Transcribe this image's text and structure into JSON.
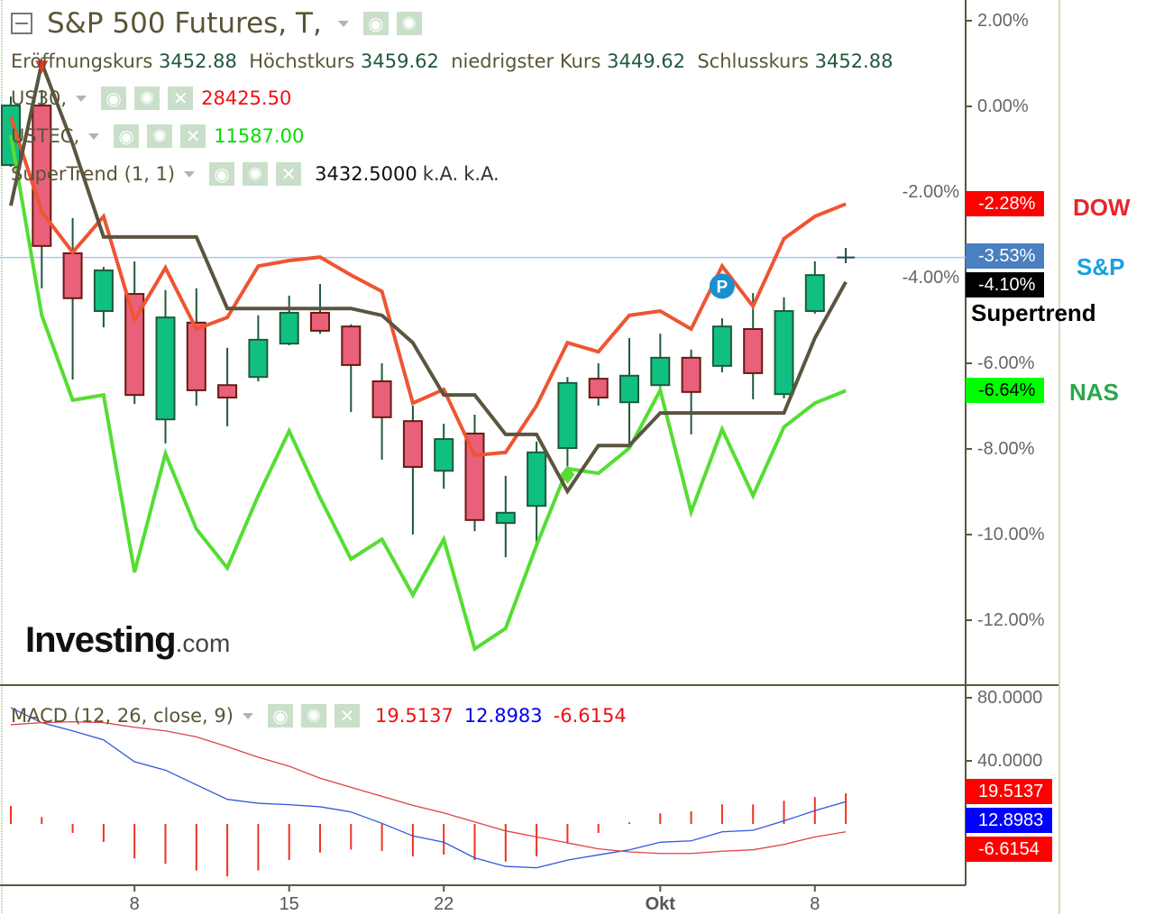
{
  "header": {
    "title": "S&P 500 Futures, T,",
    "ohlc": [
      {
        "label": "Eröffnungskurs",
        "value": "3452.88"
      },
      {
        "label": "Höchstkurs",
        "value": "3459.62"
      },
      {
        "label": "niedrigster Kurs",
        "value": "3449.62"
      },
      {
        "label": "Schlusskurs",
        "value": "3452.88"
      }
    ],
    "overlays": [
      {
        "label": "US30,",
        "value": "28425.50",
        "color": "#ee1111"
      },
      {
        "label": "USTEC,",
        "value": "11587.00",
        "color": "#00dd00"
      },
      {
        "label": "SuperTrend (1, 1)",
        "value": "3432.5000",
        "extra1": "k.A.",
        "extra2": "k.A.",
        "color": "#111111"
      }
    ],
    "icons": {
      "eye": "eye-icon",
      "gear": "gear-icon",
      "close": "close-icon",
      "collapse": "collapse-icon"
    }
  },
  "watermark": {
    "brand": "Investing",
    "suffix": ".com"
  },
  "price_tags": {
    "dow": {
      "value": "-2.28%",
      "color": "#ff0000"
    },
    "sp": {
      "value": "-3.53%",
      "color": "#4a7fc0"
    },
    "supertrend": {
      "value": "-4.10%",
      "color": "#000000"
    },
    "nas": {
      "value": "-6.64%",
      "color": "#00ff00"
    }
  },
  "side_labels": {
    "dow": {
      "text": "DOW",
      "color": "#e8262a"
    },
    "sp": {
      "text": "S&P",
      "color": "#1aa0e0"
    },
    "supertrend": {
      "text": "Supertrend",
      "color": "#000000"
    },
    "nas": {
      "text": "NAS",
      "color": "#2aa84a"
    }
  },
  "macd": {
    "title": "MACD (12, 26, close, 9)",
    "values": [
      {
        "value": "19.5137",
        "color": "#ee1111"
      },
      {
        "value": "12.8983",
        "color": "#0000ee"
      },
      {
        "value": "-6.6154",
        "color": "#ee1111"
      }
    ],
    "tags": [
      {
        "value": "19.5137",
        "color": "#ff0000"
      },
      {
        "value": "12.8983",
        "color": "#0000ff"
      },
      {
        "value": "-6.6154",
        "color": "#ff0000"
      }
    ]
  },
  "chart_data": [
    {
      "type": "candlestick",
      "ylabel_ticks": [
        "2.00%",
        "0.00%",
        "-2.00%",
        "-4.00%",
        "-6.00%",
        "-8.00%",
        "-10.00%",
        "-12.00%"
      ],
      "ytick_values": [
        2,
        0,
        -2,
        -4,
        -6,
        -8,
        -10,
        -12
      ],
      "ylim": [
        -13.5,
        2.5
      ],
      "x_tick_labels": [
        {
          "index": 4,
          "label": "8"
        },
        {
          "index": 9,
          "label": "15"
        },
        {
          "index": 14,
          "label": "22"
        },
        {
          "index": 21,
          "label": "Okt"
        },
        {
          "index": 26,
          "label": "8"
        }
      ],
      "candles_pct": [
        [
          -1.37,
          0.23,
          -1.41,
          0.02
        ],
        [
          0.02,
          0.38,
          -4.25,
          -3.26
        ],
        [
          -3.43,
          -2.61,
          -6.38,
          -4.48
        ],
        [
          -4.78,
          -3.75,
          -5.16,
          -3.83
        ],
        [
          -4.38,
          -3.62,
          -6.95,
          -6.74
        ],
        [
          -7.31,
          -4.29,
          -7.87,
          -4.93
        ],
        [
          -5.05,
          -4.25,
          -6.99,
          -6.63
        ],
        [
          -6.51,
          -5.64,
          -7.47,
          -6.8
        ],
        [
          -6.32,
          -4.88,
          -6.42,
          -5.45
        ],
        [
          -5.54,
          -4.42,
          -5.58,
          -4.82
        ],
        [
          -4.82,
          -4.15,
          -5.31,
          -5.24
        ],
        [
          -5.14,
          -5.09,
          -7.14,
          -6.04
        ],
        [
          -6.42,
          -6.0,
          -8.25,
          -7.26
        ],
        [
          -7.35,
          -6.99,
          -10.0,
          -8.42
        ],
        [
          -8.51,
          -7.41,
          -8.93,
          -7.77
        ],
        [
          -7.64,
          -7.2,
          -9.92,
          -9.66
        ],
        [
          -9.73,
          -8.63,
          -10.53,
          -9.49
        ],
        [
          -9.33,
          -7.83,
          -10.29,
          -8.08
        ],
        [
          -7.98,
          -6.32,
          -8.57,
          -6.46
        ],
        [
          -6.36,
          -6.0,
          -6.99,
          -6.8
        ],
        [
          -6.91,
          -5.41,
          -7.89,
          -6.29
        ],
        [
          -6.51,
          -5.31,
          -6.61,
          -5.87
        ],
        [
          -5.87,
          -5.68,
          -7.66,
          -6.67
        ],
        [
          -6.06,
          -4.95,
          -6.21,
          -5.14
        ],
        [
          -5.2,
          -4.36,
          -6.84,
          -6.23
        ],
        [
          -6.72,
          -4.46,
          -6.82,
          -4.78
        ],
        [
          -4.78,
          -3.62,
          -4.84,
          -3.94
        ],
        [
          -3.53,
          -3.35,
          -3.62,
          -3.53
        ]
      ],
      "candle_order": [
        "open",
        "high",
        "low",
        "close"
      ],
      "series": [
        {
          "name": "DOW",
          "color": "#ee5533",
          "values": [
            -0.25,
            -2.46,
            -3.41,
            -2.57,
            -4.99,
            -3.77,
            -5.2,
            -4.93,
            -3.73,
            -3.6,
            -3.52,
            -3.94,
            -4.32,
            -6.93,
            -6.61,
            -8.15,
            -8.08,
            -6.99,
            -5.52,
            -5.73,
            -4.88,
            -4.78,
            -5.2,
            -3.73,
            -4.67,
            -3.09,
            -2.57,
            -2.28
          ]
        },
        {
          "name": "NAS",
          "color": "#55dd33",
          "values": [
            -0.67,
            -4.88,
            -6.86,
            -6.74,
            -10.88,
            -8.11,
            -9.87,
            -10.78,
            -9.09,
            -7.58,
            -9.14,
            -10.57,
            -10.11,
            -11.41,
            -10.11,
            -12.67,
            -12.19,
            -10.25,
            -8.46,
            -8.57,
            -7.98,
            -6.63,
            -9.47,
            -7.54,
            -9.09,
            -7.49,
            -6.93,
            -6.64
          ]
        },
        {
          "name": "Supertrend",
          "color": "#5b5540",
          "values": [
            -2.32,
            1.01,
            -0.88,
            -3.05,
            -3.05,
            -3.05,
            -3.05,
            -4.72,
            -4.72,
            -4.72,
            -4.72,
            -4.72,
            -4.88,
            -5.52,
            -6.74,
            -6.74,
            -7.66,
            -7.66,
            -8.99,
            -7.92,
            -7.92,
            -7.16,
            -7.16,
            -7.16,
            -7.16,
            -7.16,
            -5.41,
            -4.1
          ]
        }
      ],
      "current_price_line": -3.53,
      "markers": [
        {
          "index": 1,
          "type": "down-arrow",
          "value": 0.9,
          "color": "#ee3322"
        },
        {
          "index": 23,
          "type": "circle",
          "label": "P",
          "value": -4.2,
          "color": "#1a8fd0"
        },
        {
          "index": 18,
          "type": "diamond",
          "value": -8.6,
          "color": "#55dd33"
        }
      ],
      "colors": {
        "up": "#10c080",
        "down": "#e8607a"
      }
    },
    {
      "type": "bar",
      "title": "MACD (12, 26, close, 9)",
      "ytick_values": [
        80,
        40
      ],
      "ylabel_ticks": [
        "80.0000",
        "40.0000"
      ],
      "histogram": [
        11.4,
        4.4,
        -5.7,
        -11.4,
        -21.9,
        -25.3,
        -29.5,
        -33.3,
        -29.5,
        -22.9,
        -18.1,
        -16.2,
        -17.1,
        -20.6,
        -19.4,
        -22.9,
        -23.8,
        -20.6,
        -12.4,
        -5.7,
        1.0,
        6.7,
        8.0,
        12.4,
        12.4,
        14.7,
        17.0,
        19.4
      ],
      "series": [
        {
          "color": "#3355dd",
          "values": [
            73.7,
            64.2,
            59.0,
            53.3,
            39.4,
            34.1,
            24.8,
            15.6,
            13.1,
            12.2,
            10.9,
            7.6,
            0.4,
            -7.6,
            -11.6,
            -21.5,
            -26.9,
            -27.8,
            -22.9,
            -19.6,
            -16.4,
            -11.6,
            -10.7,
            -5.0,
            -4.0,
            1.9,
            8.4,
            14.1
          ]
        },
        {
          "color": "#dd4444",
          "values": [
            62.9,
            64.2,
            64.8,
            64.2,
            61.3,
            59.0,
            55.2,
            49.0,
            42.3,
            36.6,
            29.0,
            23.2,
            17.5,
            11.8,
            7.0,
            1.3,
            -4.4,
            -8.2,
            -12.0,
            -15.8,
            -17.7,
            -18.7,
            -18.7,
            -17.3,
            -16.4,
            -13.0,
            -8.2,
            -5.0
          ]
        }
      ],
      "histogram_color": "#ee3322"
    }
  ]
}
